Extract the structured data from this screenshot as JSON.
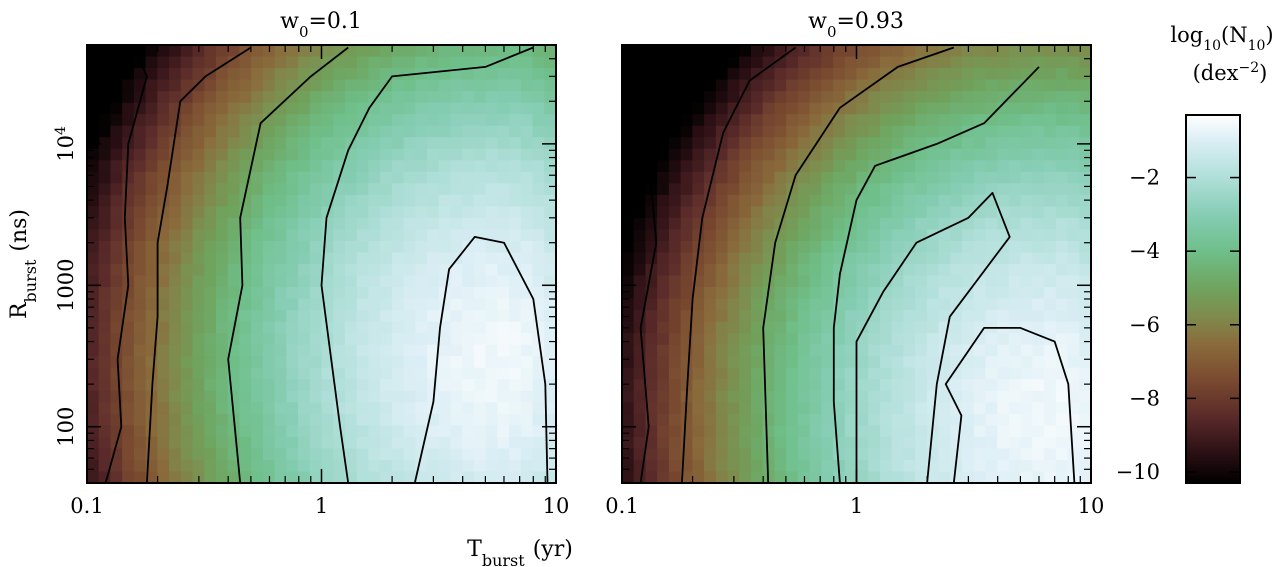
{
  "chart_data": {
    "type": "heatmap",
    "xlabel": {
      "main": "T",
      "sub": "burst",
      "unit": "(yr)"
    },
    "ylabel": {
      "main": "R",
      "sub": "burst",
      "unit": "(ns)"
    },
    "x_scale": "log",
    "y_scale": "log",
    "xlim": [
      0.1,
      10
    ],
    "ylim": [
      40,
      50000
    ],
    "x_ticks": [
      {
        "value": 0.1,
        "label": "0.1"
      },
      {
        "value": 1,
        "label": "1"
      },
      {
        "value": 10,
        "label": "10"
      }
    ],
    "y_ticks": [
      {
        "value": 100,
        "label": "100"
      },
      {
        "value": 1000,
        "label": "1000"
      },
      {
        "value": 10000,
        "label": "10",
        "sup": "4"
      }
    ],
    "panels": [
      {
        "title_main": "w",
        "title_sub": "0",
        "title_rest": "=0.1",
        "peak": {
          "x": 6.0,
          "y": 300,
          "value": -0.6
        },
        "contours": [
          {
            "level": -7,
            "points": [
              [
                0.11,
                50000
              ],
              [
                0.115,
                30000
              ],
              [
                0.11,
                20000
              ],
              [
                0.112,
                10000
              ]
            ]
          },
          {
            "level": -6,
            "points": [
              [
                0.16,
                48000
              ],
              [
                0.18,
                30000
              ],
              [
                0.15,
                10000
              ],
              [
                0.145,
                3000
              ],
              [
                0.15,
                1000
              ],
              [
                0.135,
                300
              ],
              [
                0.14,
                100
              ],
              [
                0.12,
                40
              ]
            ]
          },
          {
            "level": -5,
            "points": [
              [
                0.5,
                48000
              ],
              [
                0.32,
                30000
              ],
              [
                0.25,
                20000
              ],
              [
                0.22,
                5000
              ],
              [
                0.2,
                2000
              ],
              [
                0.2,
                600
              ],
              [
                0.19,
                200
              ],
              [
                0.18,
                40
              ]
            ]
          },
          {
            "level": -4,
            "points": [
              [
                1.3,
                48000
              ],
              [
                0.9,
                30000
              ],
              [
                0.55,
                14000
              ],
              [
                0.45,
                3000
              ],
              [
                0.46,
                1000
              ],
              [
                0.4,
                300
              ],
              [
                0.45,
                40
              ]
            ]
          },
          {
            "level": -3,
            "points": [
              [
                8.0,
                48000
              ],
              [
                5.0,
                35000
              ],
              [
                2.0,
                30000
              ],
              [
                1.6,
                18000
              ],
              [
                1.3,
                9000
              ],
              [
                1.05,
                3000
              ],
              [
                1.0,
                1000
              ],
              [
                1.1,
                300
              ],
              [
                1.2,
                100
              ],
              [
                1.3,
                40
              ]
            ]
          },
          {
            "level": -2,
            "points": [
              [
                2.5,
                40
              ],
              [
                3.0,
                150
              ],
              [
                3.2,
                500
              ],
              [
                3.5,
                1300
              ],
              [
                4.5,
                2200
              ],
              [
                6.0,
                2000
              ],
              [
                8.0,
                800
              ],
              [
                9.0,
                200
              ],
              [
                9.2,
                40
              ]
            ]
          }
        ]
      },
      {
        "title_main": "w",
        "title_sub": "0",
        "title_rest": "=0.93",
        "peak": {
          "x": 7.0,
          "y": 120,
          "value": -0.6
        },
        "contours": [
          {
            "level": -6,
            "points": [
              [
                0.12,
                48000
              ],
              [
                0.15,
                20000
              ],
              [
                0.13,
                8000
              ],
              [
                0.14,
                2000
              ],
              [
                0.12,
                500
              ],
              [
                0.13,
                100
              ],
              [
                0.12,
                40
              ]
            ]
          },
          {
            "level": -5,
            "points": [
              [
                0.55,
                48000
              ],
              [
                0.35,
                28000
              ],
              [
                0.27,
                12000
              ],
              [
                0.22,
                3000
              ],
              [
                0.2,
                800
              ],
              [
                0.19,
                200
              ],
              [
                0.18,
                40
              ]
            ]
          },
          {
            "level": -4,
            "points": [
              [
                2.6,
                48000
              ],
              [
                1.5,
                35000
              ],
              [
                0.85,
                18000
              ],
              [
                0.55,
                6000
              ],
              [
                0.45,
                2000
              ],
              [
                0.4,
                500
              ],
              [
                0.42,
                40
              ]
            ]
          },
          {
            "level": -3,
            "points": [
              [
                6.0,
                35000
              ],
              [
                3.5,
                14000
              ],
              [
                2.2,
                10000
              ],
              [
                1.2,
                7000
              ],
              [
                1.0,
                4000
              ],
              [
                0.85,
                1200
              ],
              [
                0.8,
                500
              ],
              [
                0.8,
                150
              ],
              [
                0.85,
                40
              ]
            ]
          },
          {
            "level": -2,
            "points": [
              [
                2.0,
                40
              ],
              [
                2.2,
                200
              ],
              [
                2.5,
                600
              ],
              [
                4.5,
                2200
              ],
              [
                3.8,
                4500
              ],
              [
                3.0,
                3000
              ],
              [
                1.8,
                2000
              ],
              [
                1.3,
                900
              ],
              [
                1.0,
                400
              ],
              [
                1.0,
                40
              ]
            ]
          },
          {
            "level": -1,
            "points": [
              [
                2.6,
                40
              ],
              [
                2.8,
                120
              ],
              [
                2.4,
                200
              ],
              [
                3.5,
                500
              ],
              [
                5.0,
                500
              ],
              [
                7.0,
                400
              ],
              [
                8.0,
                200
              ],
              [
                8.5,
                40
              ]
            ]
          }
        ]
      }
    ],
    "colorbar": {
      "label_main": "log",
      "label_sub": "10",
      "label_paren": "(N",
      "label_paren_sub": "10",
      "label_close": ")",
      "unit_main": "(dex",
      "unit_sup": "−2",
      "unit_close": ")",
      "range": [
        -10.3,
        -0.3
      ],
      "ticks": [
        "−2",
        "−4",
        "−6",
        "−8",
        "−10"
      ],
      "tick_values": [
        -2,
        -4,
        -6,
        -8,
        -10
      ],
      "stops": [
        {
          "value": -10.3,
          "color": "#000000"
        },
        {
          "value": -9.5,
          "color": "#2a0f14"
        },
        {
          "value": -8.5,
          "color": "#5a2a2a"
        },
        {
          "value": -7.5,
          "color": "#7a4a30"
        },
        {
          "value": -6.5,
          "color": "#8a6c3c"
        },
        {
          "value": -5.8,
          "color": "#7f8a4c"
        },
        {
          "value": -5.0,
          "color": "#6fa45e"
        },
        {
          "value": -4.0,
          "color": "#6fbf8a"
        },
        {
          "value": -3.0,
          "color": "#86cdb4"
        },
        {
          "value": -2.0,
          "color": "#b0dfd9"
        },
        {
          "value": -1.0,
          "color": "#dbeef5"
        },
        {
          "value": -0.3,
          "color": "#ffffff"
        }
      ]
    }
  }
}
